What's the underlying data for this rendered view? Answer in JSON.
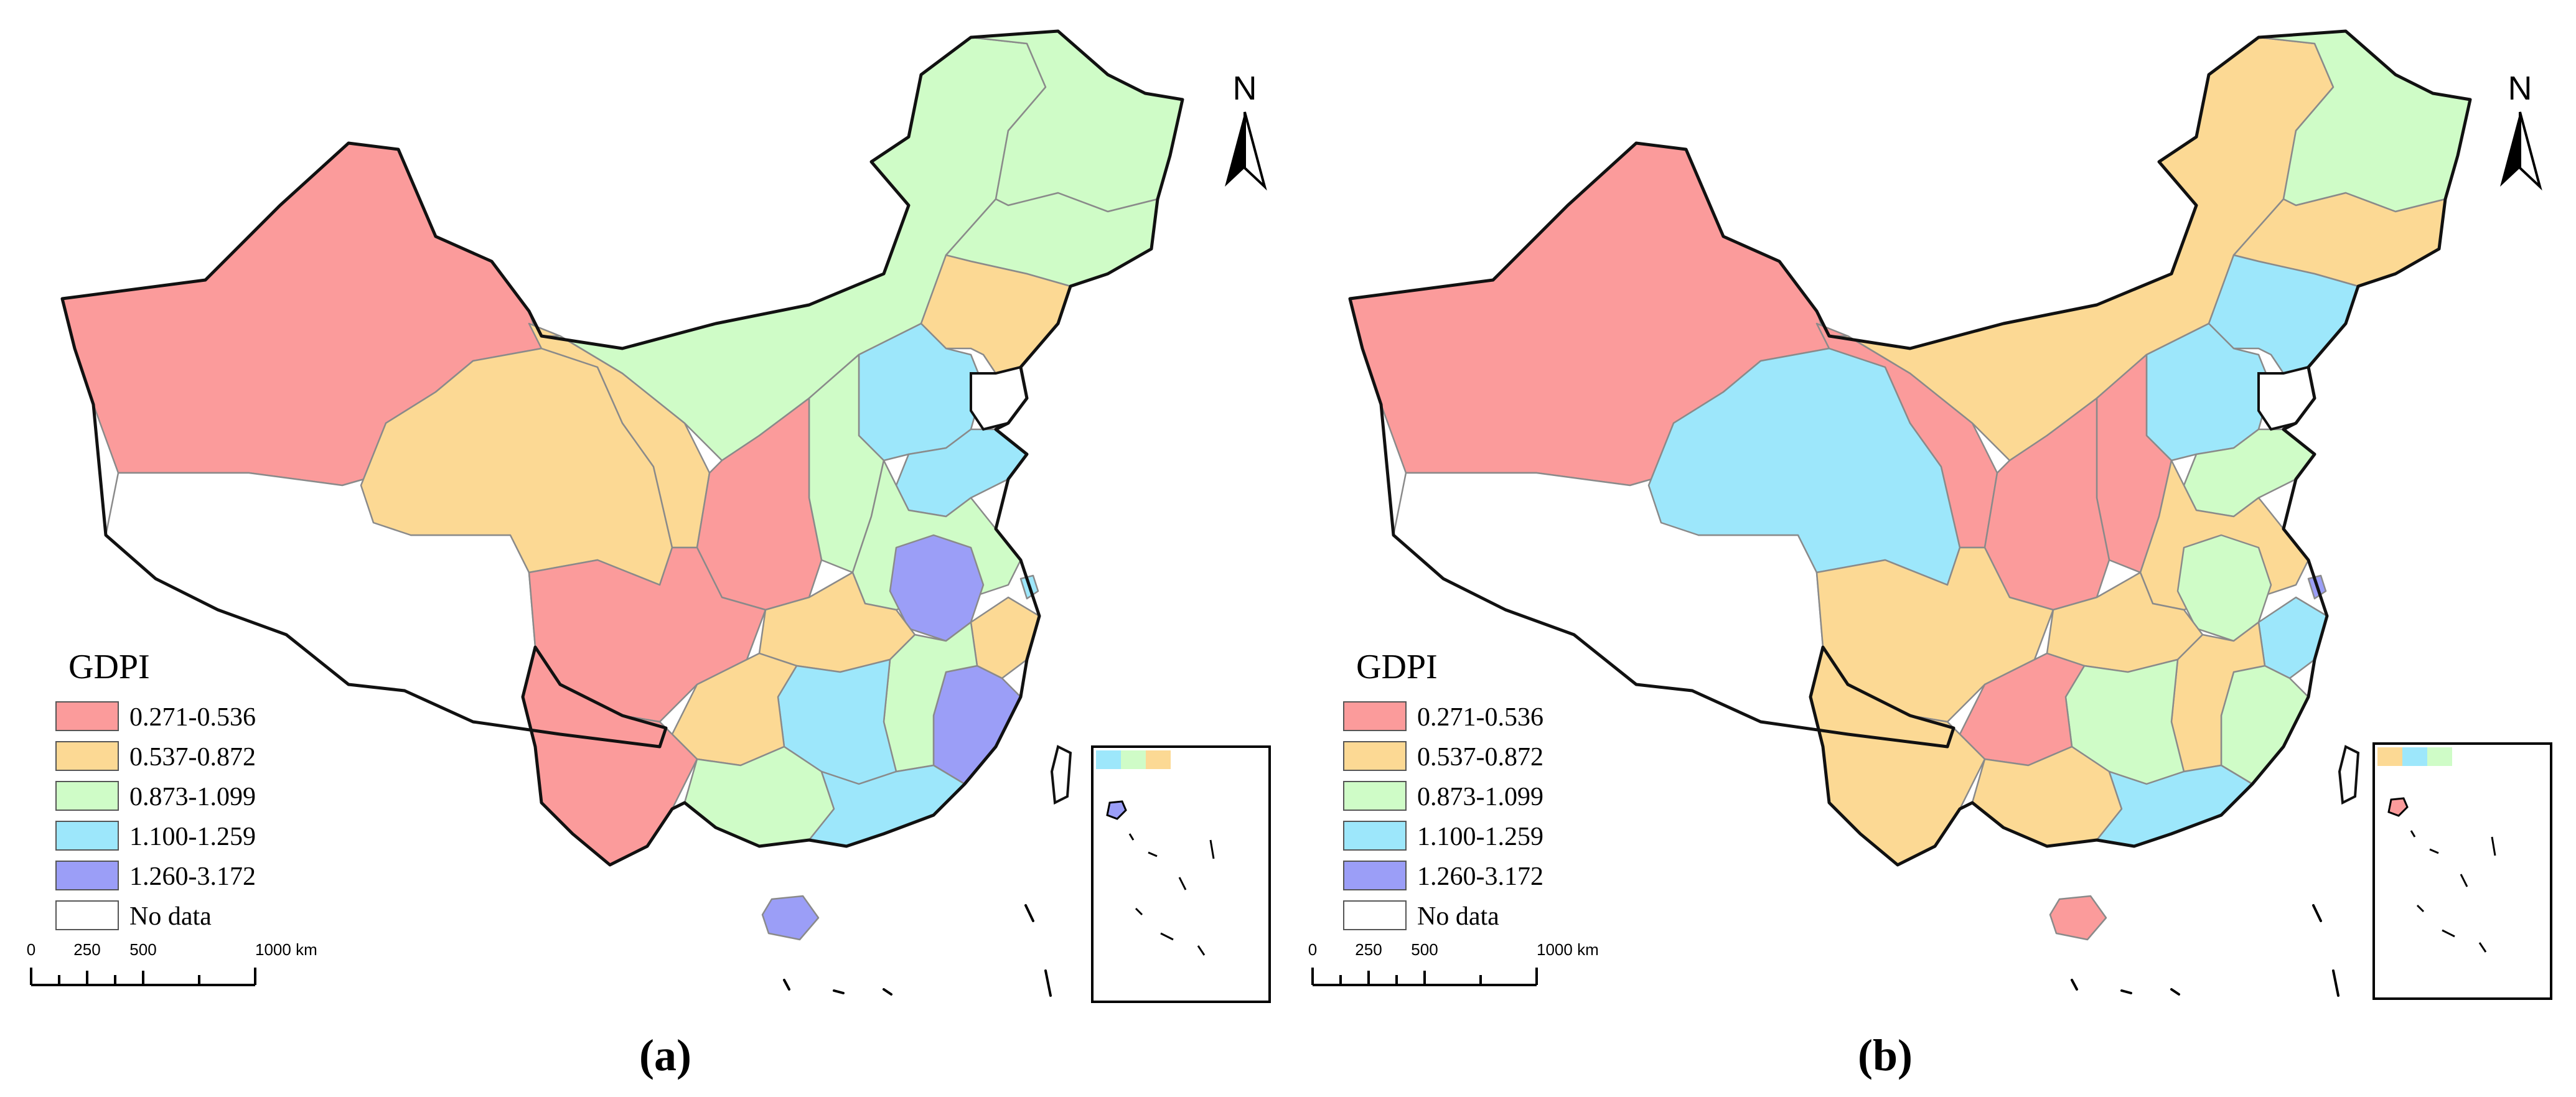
{
  "colors": {
    "c1": "#FB9B9B",
    "c2": "#FCD994",
    "c3": "#CFFCC7",
    "c4": "#9DE7FB",
    "c5": "#9B9EF7",
    "none": "#FFFFFF"
  },
  "legend": {
    "title": "GDPI",
    "items": [
      {
        "label": "0.271-0.536",
        "color": "#FB9B9B"
      },
      {
        "label": "0.537-0.872",
        "color": "#FCD994"
      },
      {
        "label": "0.873-1.099",
        "color": "#CFFCC7"
      },
      {
        "label": "1.100-1.259",
        "color": "#9DE7FB"
      },
      {
        "label": "1.260-3.172",
        "color": "#9B9EF7"
      },
      {
        "label": "No data",
        "color": "#FFFFFF"
      }
    ]
  },
  "scale_bar": {
    "ticks": [
      "0",
      "250",
      "500",
      "1000 km"
    ]
  },
  "north_arrow": {
    "label": "N"
  },
  "panels": [
    {
      "caption": "(a)",
      "regions": {
        "northwest": "c1",
        "tibet": "none",
        "qinghai": "c2",
        "gansu": "c2",
        "inner_mongolia": "c3",
        "heilongjiang": "c3",
        "jilin": "c3",
        "liaoning": "c2",
        "sichuan": "c1",
        "yunnan": "c1",
        "shaanxi": "c1",
        "shanxi": "c3",
        "north_china": "c4",
        "shandong": "c4",
        "central_east": "c3",
        "anhui": "c5",
        "hubei": "c2",
        "zhejiang": "c2",
        "fujian": "c5",
        "hunan": "c4",
        "jiangxi": "c3",
        "guizhou": "c2",
        "guangxi": "c3",
        "guangdong": "c4",
        "hainan": "c5",
        "shanghai": "c4"
      }
    },
    {
      "caption": "(b)",
      "regions": {
        "northwest": "c1",
        "tibet": "none",
        "qinghai": "c4",
        "gansu": "c1",
        "inner_mongolia": "c2",
        "heilongjiang": "c3",
        "jilin": "c2",
        "liaoning": "c4",
        "sichuan": "c2",
        "yunnan": "c2",
        "shaanxi": "c1",
        "shanxi": "c1",
        "north_china": "c4",
        "shandong": "c3",
        "central_east": "c2",
        "anhui": "c3",
        "hubei": "c2",
        "zhejiang": "c4",
        "fujian": "c3",
        "hunan": "c3",
        "jiangxi": "c2",
        "guizhou": "c1",
        "guangxi": "c2",
        "guangdong": "c4",
        "hainan": "c1",
        "shanghai": "c5"
      }
    }
  ]
}
